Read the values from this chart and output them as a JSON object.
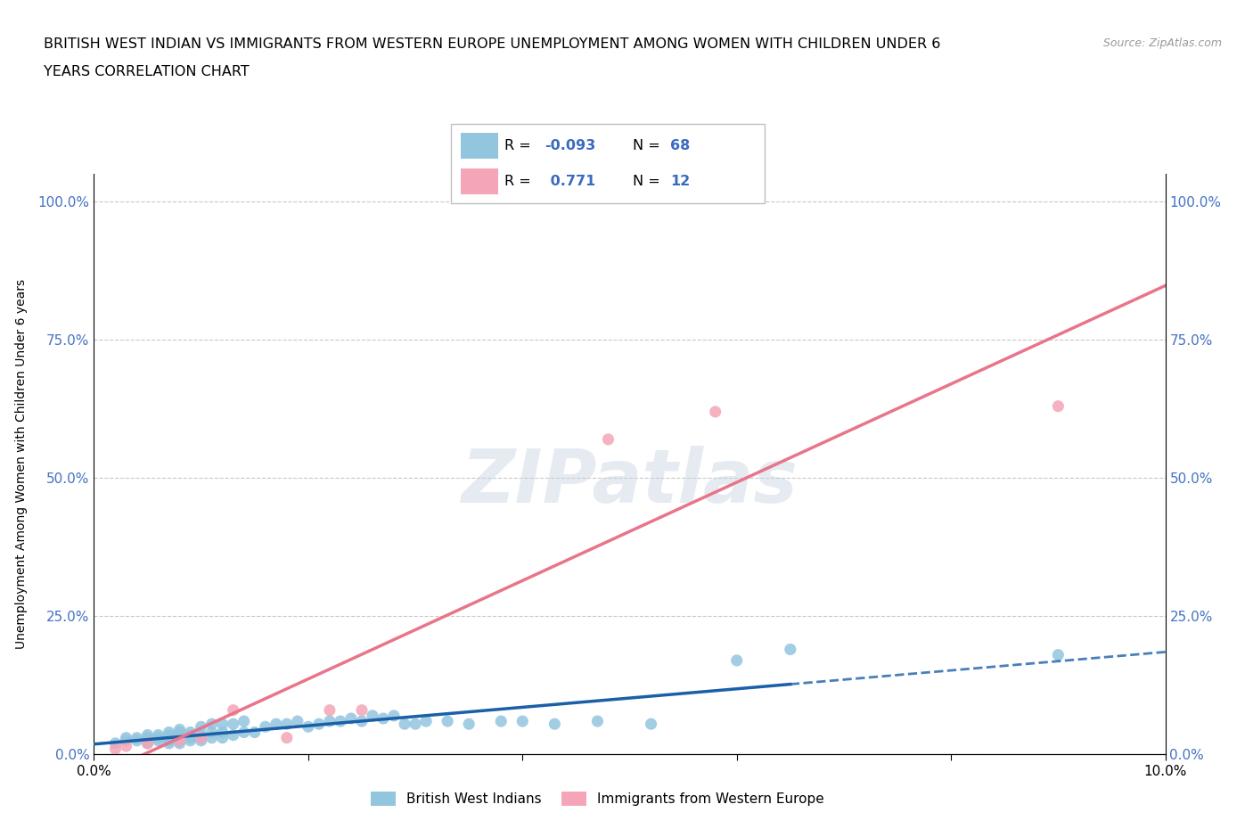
{
  "title_line1": "BRITISH WEST INDIAN VS IMMIGRANTS FROM WESTERN EUROPE UNEMPLOYMENT AMONG WOMEN WITH CHILDREN UNDER 6",
  "title_line2": "YEARS CORRELATION CHART",
  "source": "Source: ZipAtlas.com",
  "ylabel": "Unemployment Among Women with Children Under 6 years",
  "xlim": [
    0.0,
    0.1
  ],
  "ylim": [
    0.0,
    1.05
  ],
  "ytick_vals": [
    0.0,
    0.25,
    0.5,
    0.75,
    1.0
  ],
  "ytick_labels": [
    "0.0%",
    "25.0%",
    "50.0%",
    "75.0%",
    "100.0%"
  ],
  "xtick_vals": [
    0.0,
    0.02,
    0.04,
    0.06,
    0.08,
    0.1
  ],
  "xtick_labels": [
    "0.0%",
    "",
    "",
    "",
    "",
    "10.0%"
  ],
  "blue_color": "#92c5de",
  "pink_color": "#f4a6b8",
  "blue_line_color": "#1a5fa8",
  "pink_line_color": "#e8758a",
  "watermark": "ZIPatlas",
  "r1": "-0.093",
  "n1": "68",
  "r2": "0.771",
  "n2": "12",
  "legend_label1": "British West Indians",
  "legend_label2": "Immigrants from Western Europe",
  "bwi_x": [
    0.002,
    0.003,
    0.003,
    0.004,
    0.004,
    0.005,
    0.005,
    0.005,
    0.005,
    0.006,
    0.006,
    0.006,
    0.007,
    0.007,
    0.007,
    0.007,
    0.007,
    0.008,
    0.008,
    0.008,
    0.008,
    0.008,
    0.008,
    0.009,
    0.009,
    0.009,
    0.009,
    0.01,
    0.01,
    0.01,
    0.01,
    0.011,
    0.011,
    0.011,
    0.012,
    0.012,
    0.012,
    0.013,
    0.013,
    0.014,
    0.014,
    0.015,
    0.016,
    0.017,
    0.018,
    0.019,
    0.02,
    0.021,
    0.022,
    0.023,
    0.024,
    0.025,
    0.026,
    0.027,
    0.028,
    0.029,
    0.03,
    0.031,
    0.033,
    0.035,
    0.038,
    0.04,
    0.043,
    0.047,
    0.052,
    0.06,
    0.065,
    0.09
  ],
  "bwi_y": [
    0.02,
    0.025,
    0.03,
    0.025,
    0.03,
    0.02,
    0.025,
    0.03,
    0.035,
    0.025,
    0.03,
    0.035,
    0.02,
    0.025,
    0.03,
    0.035,
    0.04,
    0.02,
    0.025,
    0.03,
    0.035,
    0.04,
    0.045,
    0.025,
    0.03,
    0.035,
    0.04,
    0.025,
    0.03,
    0.035,
    0.05,
    0.03,
    0.04,
    0.055,
    0.03,
    0.04,
    0.055,
    0.035,
    0.055,
    0.04,
    0.06,
    0.04,
    0.05,
    0.055,
    0.055,
    0.06,
    0.05,
    0.055,
    0.06,
    0.06,
    0.065,
    0.06,
    0.07,
    0.065,
    0.07,
    0.055,
    0.055,
    0.06,
    0.06,
    0.055,
    0.06,
    0.06,
    0.055,
    0.06,
    0.055,
    0.17,
    0.19,
    0.18
  ],
  "we_x": [
    0.002,
    0.003,
    0.005,
    0.008,
    0.01,
    0.013,
    0.018,
    0.022,
    0.025,
    0.048,
    0.058,
    0.09
  ],
  "we_y": [
    0.01,
    0.015,
    0.02,
    0.025,
    0.03,
    0.08,
    0.03,
    0.08,
    0.08,
    0.57,
    0.62,
    0.63
  ]
}
